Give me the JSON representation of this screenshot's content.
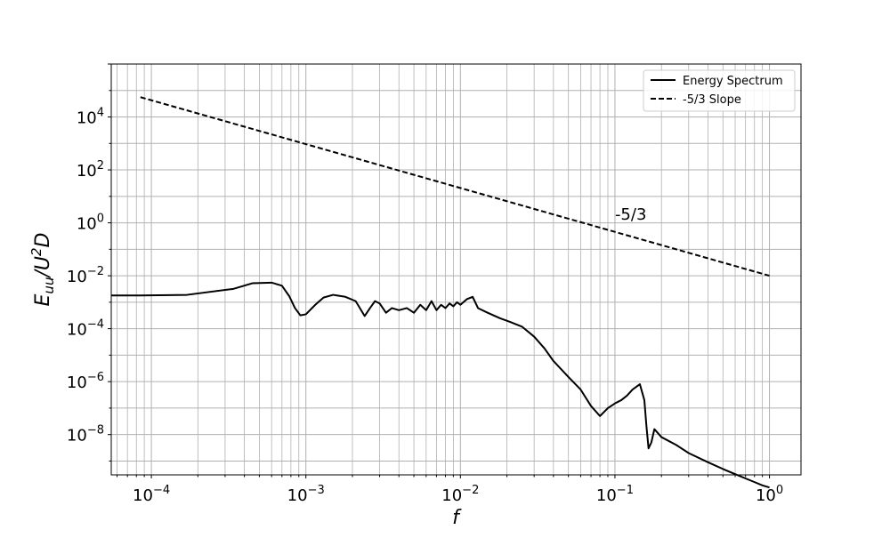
{
  "chart_data": {
    "type": "line",
    "x_scale": "log",
    "y_scale": "log",
    "xlim": [
      5.5e-05,
      1.6
    ],
    "ylim": [
      3e-10,
      1000000.0
    ],
    "grid": true,
    "grid_which": "both",
    "legend_position": "top-right",
    "xlabel": "f",
    "ylabel": {
      "E": "E",
      "sub": "uu",
      "rest": "/U",
      "exp": "2",
      "tail": "D"
    },
    "x_ticks": [
      {
        "value": 0.0001,
        "base": "10",
        "exp": "−4"
      },
      {
        "value": 0.001,
        "base": "10",
        "exp": "−3"
      },
      {
        "value": 0.01,
        "base": "10",
        "exp": "−2"
      },
      {
        "value": 0.1,
        "base": "10",
        "exp": "−1"
      },
      {
        "value": 1,
        "base": "10",
        "exp": "0"
      }
    ],
    "y_ticks": [
      {
        "value": 1e-08,
        "base": "10",
        "exp": "−8"
      },
      {
        "value": 1e-06,
        "base": "10",
        "exp": "−6"
      },
      {
        "value": 0.0001,
        "base": "10",
        "exp": "−4"
      },
      {
        "value": 0.01,
        "base": "10",
        "exp": "−2"
      },
      {
        "value": 1,
        "base": "10",
        "exp": "0"
      },
      {
        "value": 100,
        "base": "10",
        "exp": "2"
      },
      {
        "value": 10000,
        "base": "10",
        "exp": "4"
      }
    ],
    "series": [
      {
        "name": "Energy Spectrum",
        "style": "solid",
        "color": "#000000",
        "x": [
          5.5e-05,
          8.5e-05,
          0.00017,
          0.00034,
          0.00045,
          0.0006,
          0.0007,
          0.00078,
          0.00085,
          0.00092,
          0.001,
          0.00115,
          0.0013,
          0.0015,
          0.0018,
          0.0021,
          0.0024,
          0.0026,
          0.0028,
          0.003,
          0.0033,
          0.0036,
          0.004,
          0.0045,
          0.005,
          0.0055,
          0.006,
          0.0065,
          0.007,
          0.0075,
          0.008,
          0.0085,
          0.009,
          0.0095,
          0.01,
          0.011,
          0.012,
          0.013,
          0.015,
          0.018,
          0.021,
          0.025,
          0.03,
          0.035,
          0.04,
          0.05,
          0.06,
          0.07,
          0.08,
          0.09,
          0.1,
          0.11,
          0.12,
          0.13,
          0.145,
          0.155,
          0.16,
          0.165,
          0.172,
          0.18,
          0.2,
          0.25,
          0.3,
          0.4,
          0.5,
          0.6,
          0.7,
          0.8,
          0.9,
          1.0
        ],
        "y": [
          0.0018,
          0.0018,
          0.0019,
          0.0032,
          0.0052,
          0.0055,
          0.0042,
          0.0017,
          0.0006,
          0.00032,
          0.00035,
          0.0008,
          0.0015,
          0.0019,
          0.0016,
          0.0011,
          0.0003,
          0.0006,
          0.0011,
          0.0009,
          0.0004,
          0.0006,
          0.0005,
          0.0006,
          0.0004,
          0.0008,
          0.0005,
          0.0011,
          0.0005,
          0.0008,
          0.0006,
          0.0009,
          0.0007,
          0.001,
          0.0008,
          0.0013,
          0.0016,
          0.0006,
          0.0004,
          0.00025,
          0.00018,
          0.00012,
          5e-05,
          1.8e-05,
          6e-06,
          1.5e-06,
          5e-07,
          1.2e-07,
          5e-08,
          1e-07,
          1.5e-07,
          2e-07,
          3e-07,
          5e-07,
          8e-07,
          2e-07,
          2e-08,
          3e-09,
          5e-09,
          1.6e-08,
          8e-09,
          4e-09,
          2e-09,
          9e-10,
          5e-10,
          3.2e-10,
          2.2e-10,
          1.6e-10,
          1.2e-10,
          1e-10
        ]
      },
      {
        "name": "-5/3 Slope",
        "style": "dashed",
        "color": "#000000",
        "x": [
          8.5e-05,
          1.0
        ],
        "y": [
          56000,
          0.01
        ]
      }
    ],
    "annotations": [
      {
        "text": "-5/3",
        "x": 0.1,
        "y": 1.3
      }
    ]
  }
}
